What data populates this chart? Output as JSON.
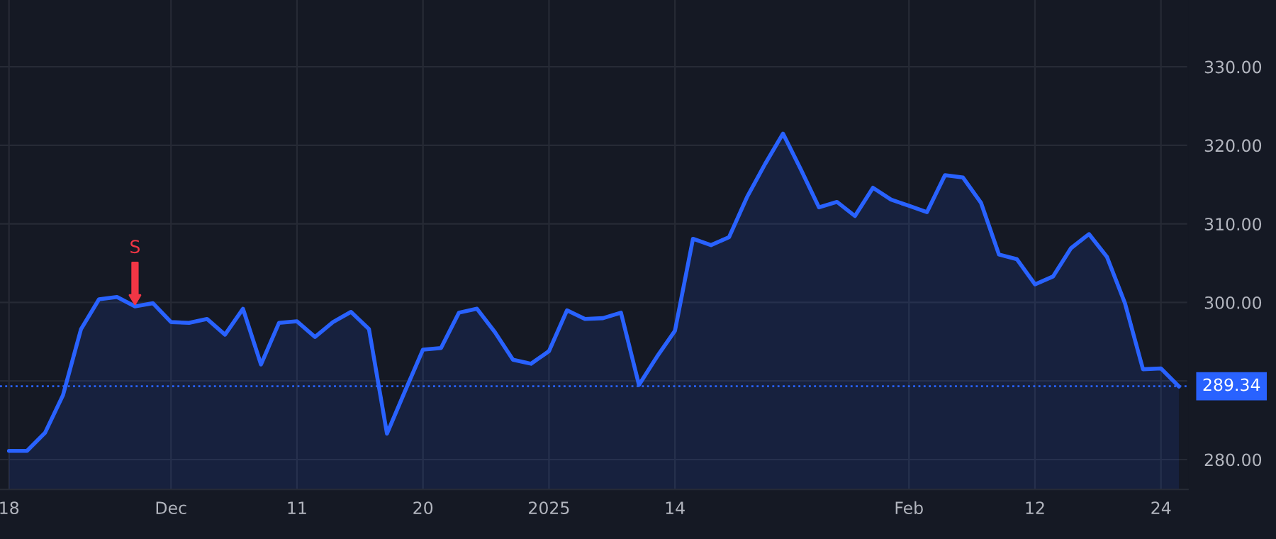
{
  "chart_data": {
    "type": "area",
    "categories": [
      "18",
      null,
      null,
      null,
      null,
      null,
      null,
      null,
      null,
      "Dec",
      null,
      null,
      null,
      null,
      null,
      null,
      "11",
      null,
      null,
      null,
      null,
      null,
      null,
      "20",
      null,
      null,
      null,
      null,
      null,
      null,
      "2025",
      null,
      null,
      null,
      null,
      null,
      null,
      "14",
      null,
      null,
      null,
      null,
      null,
      null,
      null,
      null,
      null,
      null,
      null,
      null,
      "Feb",
      null,
      null,
      null,
      null,
      null,
      null,
      "12",
      null,
      null,
      null,
      null,
      null,
      null,
      "24",
      null
    ],
    "series": [
      {
        "color": "#2962ff",
        "values": [
          281.1,
          281.1,
          283.4,
          288.2,
          296.6,
          300.4,
          300.7,
          299.5,
          299.9,
          297.5,
          297.4,
          297.9,
          295.9,
          299.2,
          292.1,
          297.4,
          297.6,
          295.6,
          297.5,
          298.8,
          296.6,
          283.3,
          288.7,
          294.0,
          294.2,
          298.7,
          299.2,
          296.2,
          292.7,
          292.2,
          293.8,
          299.0,
          297.9,
          298.0,
          298.7,
          289.5,
          293.1,
          296.4,
          308.1,
          307.3,
          308.3,
          313.4,
          317.6,
          321.5,
          316.9,
          312.1,
          312.8,
          311.0,
          314.6,
          313.1,
          312.3,
          311.5,
          316.2,
          315.9,
          312.7,
          306.1,
          305.5,
          302.3,
          303.3,
          306.9,
          308.7,
          305.8,
          299.9,
          291.5,
          291.6,
          289.3
        ]
      }
    ],
    "ylim": [
      276.2,
      338.5
    ],
    "yticks": [
      {
        "value": 280,
        "label": "280.00"
      },
      {
        "value": 290,
        "label": null
      },
      {
        "value": 300,
        "label": "300.00"
      },
      {
        "value": 310,
        "label": "310.00"
      },
      {
        "value": 320,
        "label": "320.00"
      },
      {
        "value": 330,
        "label": "330.00"
      }
    ],
    "grid": true,
    "ref_lines": [
      {
        "axis": "y",
        "value": 289.34,
        "label": "289.34",
        "color": "#2962ff",
        "line_style": "dotted"
      }
    ],
    "annotations": [
      {
        "text": "S",
        "y": 299.5
      }
    ]
  }
}
